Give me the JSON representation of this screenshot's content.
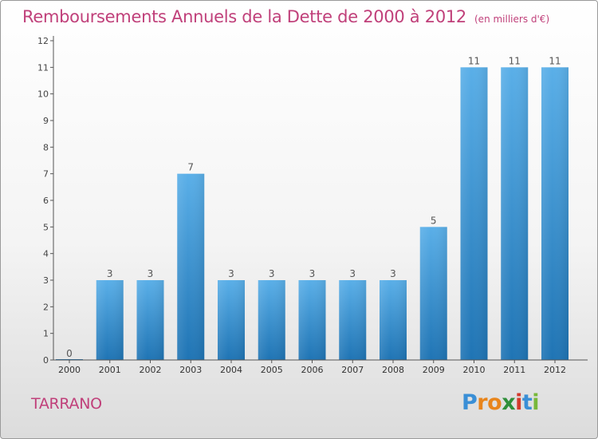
{
  "title": "Remboursements Annuels de la Dette de 2000 à 2012",
  "subtitle": "(en milliers d'€)",
  "commune": "TARRANO",
  "logo": {
    "text": "Proxiti",
    "letter_colors": [
      "#3a8fd6",
      "#e8851c",
      "#e8851c",
      "#2f8f3a",
      "#d33a2c",
      "#3a8fd6",
      "#78b83a"
    ]
  },
  "colors": {
    "title": "#c0407a",
    "bar_top": "#5aafe8",
    "bar_bottom": "#1f74b4",
    "axis": "#555555"
  },
  "chart_data": {
    "type": "bar",
    "categories": [
      "2000",
      "2001",
      "2002",
      "2003",
      "2004",
      "2005",
      "2006",
      "2007",
      "2008",
      "2009",
      "2010",
      "2011",
      "2012"
    ],
    "values": [
      0,
      3,
      3,
      7,
      3,
      3,
      3,
      3,
      3,
      5,
      11,
      11,
      11
    ],
    "value_labels": [
      "0",
      "3",
      "3",
      "7",
      "3",
      "3",
      "3",
      "3",
      "3",
      "5",
      "11",
      "11",
      "11"
    ],
    "yticks": [
      "0",
      "1",
      "2",
      "3",
      "4",
      "5",
      "6",
      "7",
      "8",
      "9",
      "10",
      "11",
      "12"
    ],
    "ylim": [
      0,
      12
    ],
    "xlabel": "",
    "ylabel": "",
    "grid": false,
    "legend": "none"
  }
}
